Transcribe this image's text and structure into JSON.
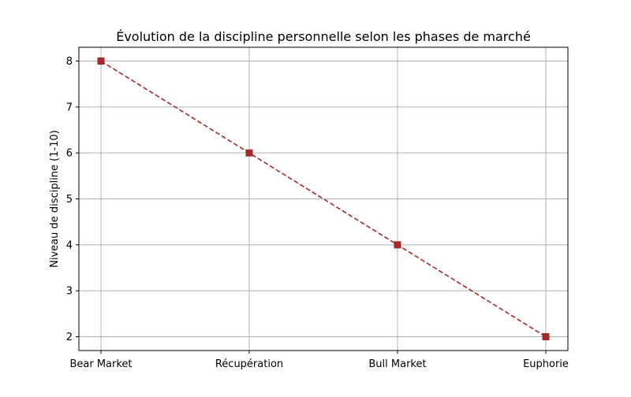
{
  "chart_data": {
    "type": "line",
    "title": "Évolution de la discipline personnelle selon les phases de marché",
    "xlabel": "",
    "ylabel": "Niveau de discipline (1-10)",
    "categories": [
      "Bear Market",
      "Récupération",
      "Bull Market",
      "Euphorie"
    ],
    "series": [
      {
        "values": [
          8,
          6,
          4,
          2
        ],
        "color": "#a52a2a",
        "line_style": "dashed",
        "marker": "square"
      }
    ],
    "ylim": [
      1.7,
      8.3
    ],
    "yticks": [
      2,
      3,
      4,
      5,
      6,
      7,
      8
    ],
    "grid": true,
    "legend": "none"
  }
}
